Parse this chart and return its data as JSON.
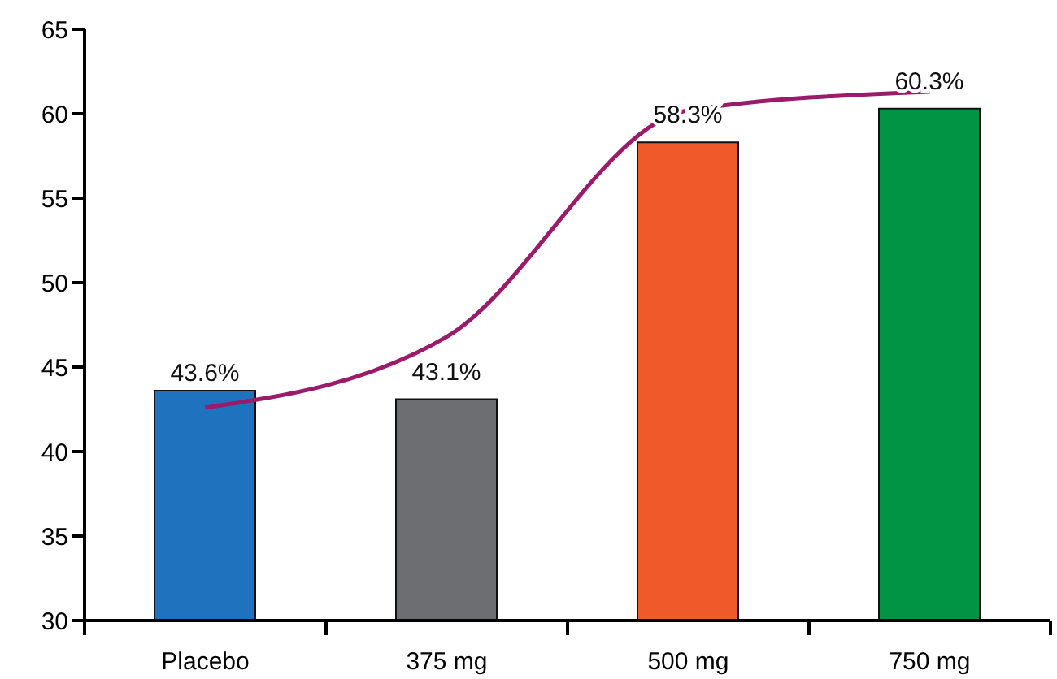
{
  "chart_data": {
    "type": "bar",
    "categories": [
      "Placebo",
      "375 mg",
      "500 mg",
      "750 mg"
    ],
    "colors": [
      "#1f73be",
      "#6d6e71",
      "#f05a2a",
      "#009444"
    ],
    "values": [
      43.6,
      43.1,
      58.3,
      60.3
    ],
    "value_labels": [
      "43.6%",
      "43.1%",
      "58.3%",
      "60.3%"
    ],
    "ylim": [
      30,
      65
    ],
    "yticks": [
      30,
      35,
      40,
      45,
      50,
      55,
      60,
      65
    ],
    "series": [
      {
        "type": "line",
        "color": "#9b1b6a",
        "marker": "none",
        "values": [
          42.6,
          46.8,
          60.2,
          61.3
        ]
      }
    ]
  }
}
